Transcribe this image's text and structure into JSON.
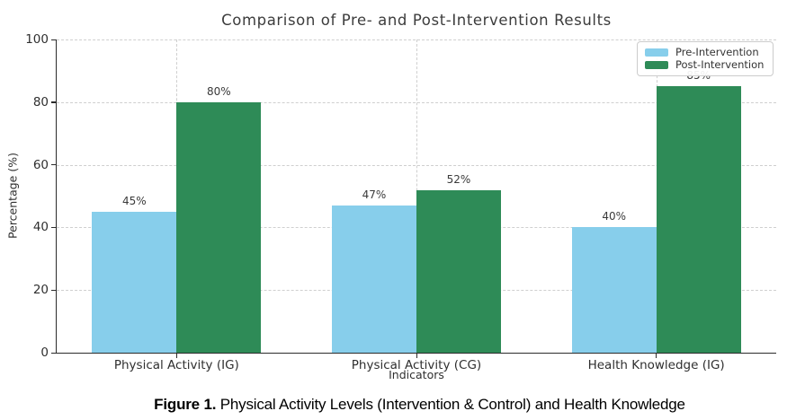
{
  "figure": {
    "caption_prefix": "Figure 1.",
    "caption_rest": " Physical Activity Levels (Intervention & Control) and Health Knowledge"
  },
  "chart_data": {
    "type": "bar",
    "title": "Comparison of Pre- and Post-Intervention Results",
    "xlabel": "Indicators",
    "ylabel": "Percentage (%)",
    "categories": [
      "Physical Activity (IG)",
      "Physical Activity (CG)",
      "Health Knowledge (IG)"
    ],
    "series": [
      {
        "name": "Pre-Intervention",
        "color": "#87CEEB",
        "values": [
          45,
          47,
          40
        ]
      },
      {
        "name": "Post-Intervention",
        "color": "#2E8B57",
        "values": [
          80,
          52,
          85
        ]
      }
    ],
    "value_label_format": "{v}%",
    "ylim": [
      0,
      100
    ],
    "yticks": [
      0,
      20,
      40,
      60,
      80,
      100
    ],
    "grid": true,
    "grid_style": "dashed",
    "legend_position": "top-right",
    "colors": {
      "pre": "#87CEEB",
      "post": "#2E8B57",
      "gridline": "#cfcfcf",
      "axis": "#2b2b2b",
      "title_text": "#3c3c3c"
    }
  }
}
